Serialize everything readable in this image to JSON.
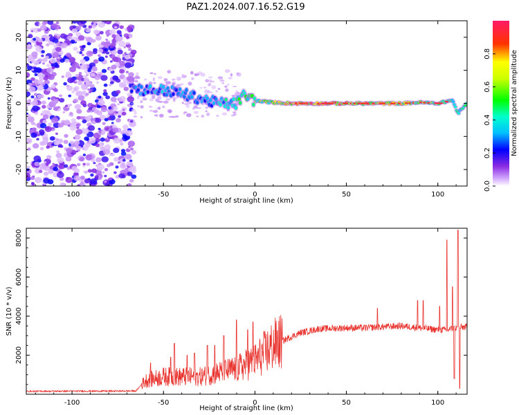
{
  "title": "PAZ1.2024.007.16.52.G19",
  "chart_data": [
    {
      "type": "heatmap",
      "xlabel": "Height of straight line (km)",
      "ylabel": "Frequency (Hz)",
      "xlim": [
        -125,
        116
      ],
      "ylim": [
        -25,
        25
      ],
      "xticks": [
        -100,
        -50,
        0,
        50,
        100
      ],
      "yticks": [
        -20,
        -10,
        0,
        10,
        20
      ],
      "colorbar": {
        "label": "Normalized spectral amplitude",
        "range": [
          0,
          1
        ],
        "ticks": [
          0.0,
          0.2,
          0.4,
          0.6,
          0.8
        ],
        "colormap": "rainbow"
      },
      "noise_region_x": [
        -125,
        -68
      ],
      "ridge": [
        {
          "x": -68,
          "f": 5.0,
          "amp": 0.3
        },
        {
          "x": -60,
          "f": 4.0,
          "amp": 0.35
        },
        {
          "x": -50,
          "f": 4.0,
          "amp": 0.4
        },
        {
          "x": -40,
          "f": 3.0,
          "amp": 0.35
        },
        {
          "x": -30,
          "f": 1.5,
          "amp": 0.35
        },
        {
          "x": -20,
          "f": 0.0,
          "amp": 0.4
        },
        {
          "x": -10,
          "f": 0.0,
          "amp": 0.55
        },
        {
          "x": -6,
          "f": 2.5,
          "amp": 0.55
        },
        {
          "x": 0,
          "f": 0.8,
          "amp": 0.7
        },
        {
          "x": 10,
          "f": 0.3,
          "amp": 0.75
        },
        {
          "x": 20,
          "f": 0.0,
          "amp": 0.9
        },
        {
          "x": 40,
          "f": 0.0,
          "amp": 0.9
        },
        {
          "x": 60,
          "f": 0.0,
          "amp": 0.85
        },
        {
          "x": 80,
          "f": 0.0,
          "amp": 0.8
        },
        {
          "x": 90,
          "f": 0.3,
          "amp": 0.7
        },
        {
          "x": 100,
          "f": 0.0,
          "amp": 0.75
        },
        {
          "x": 108,
          "f": 1.0,
          "amp": 0.55
        },
        {
          "x": 111,
          "f": -3.0,
          "amp": 0.5
        },
        {
          "x": 116,
          "f": 0.0,
          "amp": 0.6
        }
      ]
    },
    {
      "type": "line",
      "xlabel": "Height of straight line (km)",
      "ylabel": "SNR (10 * v/v)",
      "xlim": [
        -125,
        116
      ],
      "ylim": [
        0,
        8500
      ],
      "xticks": [
        -100,
        -50,
        0,
        50,
        100
      ],
      "yticks": [
        2000,
        4000,
        6000,
        8000
      ],
      "color": "#e8332e",
      "envelope": [
        {
          "x": -125,
          "y": 150
        },
        {
          "x": -100,
          "y": 160
        },
        {
          "x": -80,
          "y": 160
        },
        {
          "x": -65,
          "y": 170
        },
        {
          "x": -60,
          "y": 700
        },
        {
          "x": -50,
          "y": 900
        },
        {
          "x": -40,
          "y": 900
        },
        {
          "x": -30,
          "y": 900
        },
        {
          "x": -20,
          "y": 1100
        },
        {
          "x": -10,
          "y": 1300
        },
        {
          "x": 0,
          "y": 1700
        },
        {
          "x": 10,
          "y": 2500
        },
        {
          "x": 20,
          "y": 2950
        },
        {
          "x": 25,
          "y": 3150
        },
        {
          "x": 35,
          "y": 3350
        },
        {
          "x": 50,
          "y": 3400
        },
        {
          "x": 60,
          "y": 3400
        },
        {
          "x": 70,
          "y": 3450
        },
        {
          "x": 80,
          "y": 3500
        },
        {
          "x": 90,
          "y": 3400
        },
        {
          "x": 100,
          "y": 3300
        },
        {
          "x": 105,
          "y": 3300
        },
        {
          "x": 110,
          "y": 3400
        },
        {
          "x": 116,
          "y": 3450
        }
      ],
      "spikes": [
        {
          "x": -57,
          "y": 1600
        },
        {
          "x": -46,
          "y": 1900
        },
        {
          "x": -44,
          "y": 2600
        },
        {
          "x": -37,
          "y": 2000
        },
        {
          "x": -33,
          "y": 2100
        },
        {
          "x": -26,
          "y": 2500
        },
        {
          "x": -22,
          "y": 2500
        },
        {
          "x": -17,
          "y": 3000
        },
        {
          "x": -10,
          "y": 3800
        },
        {
          "x": -4,
          "y": 3300
        },
        {
          "x": -1,
          "y": 3700
        },
        {
          "x": 67,
          "y": 4400
        },
        {
          "x": 89,
          "y": 4800
        },
        {
          "x": 92,
          "y": 4800
        },
        {
          "x": 101,
          "y": 4500
        },
        {
          "x": 105,
          "y": 7900
        },
        {
          "x": 108,
          "y": 5500
        },
        {
          "x": 111,
          "y": 8400
        },
        {
          "x": 109,
          "y": 800
        },
        {
          "x": 112,
          "y": 300
        }
      ]
    }
  ]
}
